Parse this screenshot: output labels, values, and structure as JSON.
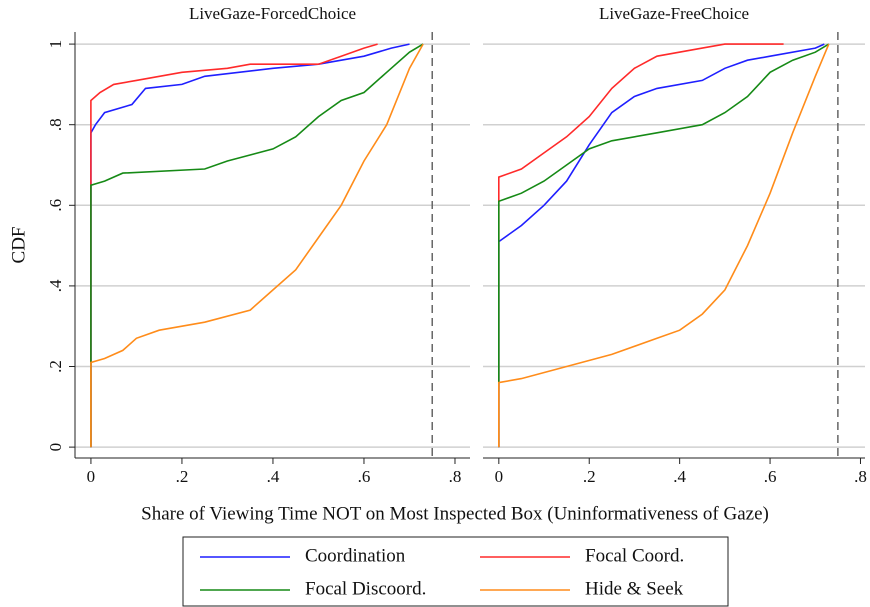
{
  "figure": {
    "xlabel": "Share of Viewing Time NOT on Most Inspected Box (Uninformativeness of Gaze)",
    "ylabel": "CDF"
  },
  "chart_data": [
    {
      "type": "line",
      "title": "LiveGaze-ForcedChoice",
      "xlim": [
        -0.035,
        0.833
      ],
      "ylim": [
        -0.027,
        1.03
      ],
      "xticks": [
        0,
        {
          "value": 0.2,
          "label": ".2"
        },
        {
          "value": 0.4,
          "label": ".4"
        },
        {
          "value": 0.6,
          "label": ".6"
        },
        {
          "value": 0.8,
          "label": ".8"
        }
      ],
      "yticks": [
        0,
        {
          "value": 0.2,
          "label": ".2"
        },
        {
          "value": 0.4,
          "label": ".4"
        },
        {
          "value": 0.6,
          "label": ".6"
        },
        {
          "value": 0.8,
          "label": ".8"
        },
        1
      ],
      "grid": true,
      "vline": 0.75,
      "series": [
        {
          "name": "Coordination",
          "color": "#1f1fff",
          "x": [
            0,
            0,
            0.01,
            0.03,
            0.09,
            0.12,
            0.2,
            0.25,
            0.4,
            0.5,
            0.6,
            0.66,
            0.7
          ],
          "values": [
            0,
            0.78,
            0.8,
            0.83,
            0.85,
            0.89,
            0.9,
            0.92,
            0.94,
            0.95,
            0.97,
            0.99,
            1
          ]
        },
        {
          "name": "Focal Coord.",
          "color": "#ff2a2a",
          "x": [
            0,
            0,
            0.02,
            0.05,
            0.1,
            0.2,
            0.3,
            0.35,
            0.5,
            0.55,
            0.6,
            0.63
          ],
          "values": [
            0,
            0.86,
            0.88,
            0.9,
            0.91,
            0.93,
            0.94,
            0.95,
            0.95,
            0.97,
            0.99,
            1
          ]
        },
        {
          "name": "Focal Discoord.",
          "color": "#168a16",
          "x": [
            0,
            0,
            0.03,
            0.07,
            0.25,
            0.3,
            0.4,
            0.45,
            0.5,
            0.55,
            0.6,
            0.65,
            0.7,
            0.73
          ],
          "values": [
            0,
            0.65,
            0.66,
            0.68,
            0.69,
            0.71,
            0.74,
            0.77,
            0.82,
            0.86,
            0.88,
            0.93,
            0.98,
            1
          ]
        },
        {
          "name": "Hide & Seek",
          "color": "#ff8c1a",
          "x": [
            0,
            0,
            0.03,
            0.07,
            0.1,
            0.15,
            0.25,
            0.35,
            0.4,
            0.45,
            0.5,
            0.55,
            0.6,
            0.65,
            0.7,
            0.73
          ],
          "values": [
            0,
            0.21,
            0.22,
            0.24,
            0.27,
            0.29,
            0.31,
            0.34,
            0.39,
            0.44,
            0.52,
            0.6,
            0.71,
            0.8,
            0.94,
            1
          ]
        }
      ]
    },
    {
      "type": "line",
      "title": "LiveGaze-FreeChoice",
      "xlim": [
        -0.035,
        0.81
      ],
      "ylim": [
        -0.027,
        1.03
      ],
      "xticks": [
        0,
        {
          "value": 0.2,
          "label": ".2"
        },
        {
          "value": 0.4,
          "label": ".4"
        },
        {
          "value": 0.6,
          "label": ".6"
        },
        {
          "value": 0.8,
          "label": ".8"
        }
      ],
      "yticks": [
        0,
        0.2,
        0.4,
        0.6,
        0.8,
        1
      ],
      "grid": true,
      "vline": 0.75,
      "series": [
        {
          "color": "#1f1fff",
          "x": [
            0,
            0,
            0.05,
            0.1,
            0.15,
            0.2,
            0.25,
            0.3,
            0.35,
            0.45,
            0.5,
            0.55,
            0.6,
            0.7,
            0.72
          ],
          "values": [
            0,
            0.51,
            0.55,
            0.6,
            0.66,
            0.75,
            0.83,
            0.87,
            0.89,
            0.91,
            0.94,
            0.96,
            0.97,
            0.99,
            1
          ]
        },
        {
          "color": "#ff2a2a",
          "x": [
            0,
            0,
            0.05,
            0.1,
            0.15,
            0.2,
            0.25,
            0.3,
            0.35,
            0.45,
            0.5,
            0.63
          ],
          "values": [
            0,
            0.67,
            0.69,
            0.73,
            0.77,
            0.82,
            0.89,
            0.94,
            0.97,
            0.99,
            1,
            1
          ]
        },
        {
          "color": "#168a16",
          "x": [
            0,
            0,
            0.05,
            0.1,
            0.15,
            0.2,
            0.25,
            0.35,
            0.45,
            0.5,
            0.55,
            0.6,
            0.65,
            0.7,
            0.73
          ],
          "values": [
            0,
            0.61,
            0.63,
            0.66,
            0.7,
            0.74,
            0.76,
            0.78,
            0.8,
            0.83,
            0.87,
            0.93,
            0.96,
            0.98,
            1
          ]
        },
        {
          "color": "#ff8c1a",
          "x": [
            0,
            0,
            0.05,
            0.15,
            0.25,
            0.35,
            0.4,
            0.45,
            0.5,
            0.55,
            0.6,
            0.65,
            0.7,
            0.73
          ],
          "values": [
            0,
            0.16,
            0.17,
            0.2,
            0.23,
            0.27,
            0.29,
            0.33,
            0.39,
            0.5,
            0.63,
            0.78,
            0.92,
            1
          ]
        }
      ]
    }
  ]
}
